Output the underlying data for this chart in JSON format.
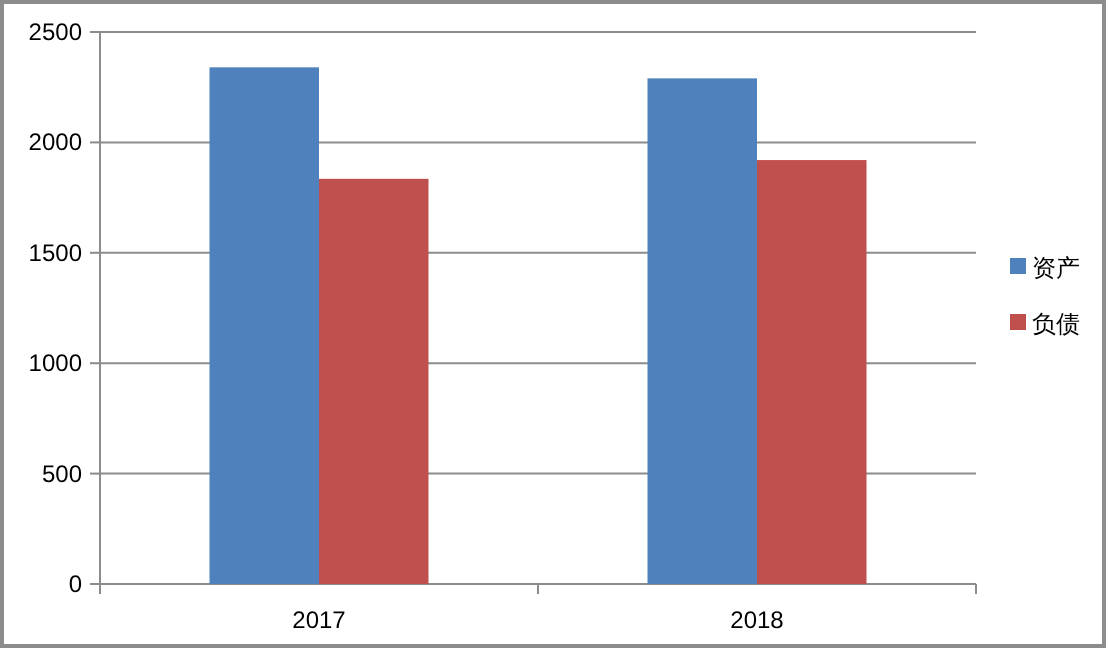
{
  "chart_data": {
    "type": "bar",
    "categories": [
      "2017",
      "2018"
    ],
    "series": [
      {
        "name": "资产",
        "color": "#4f81bd",
        "values": [
          2340,
          2290
        ]
      },
      {
        "name": "负债",
        "color": "#c0504d",
        "values": [
          1835,
          1920
        ]
      }
    ],
    "ylim": [
      0,
      2500
    ],
    "yticks": [
      0,
      500,
      1000,
      1500,
      2000,
      2500
    ],
    "grid": "y",
    "legend": "right"
  }
}
